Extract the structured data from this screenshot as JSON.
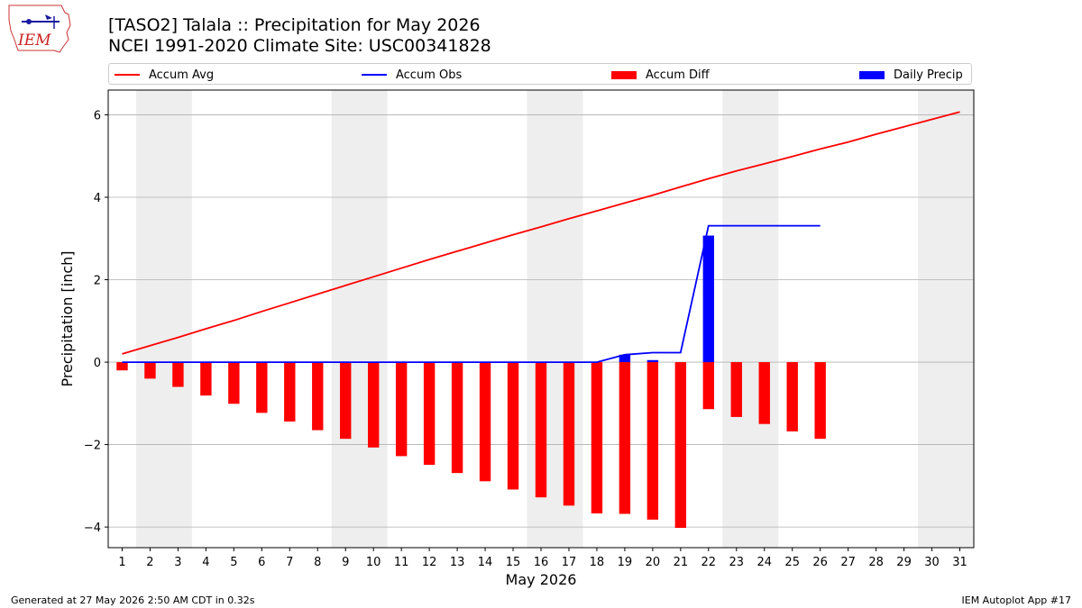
{
  "header": {
    "logo_text": "IEM",
    "title_line1": "[TASO2] Talala :: Precipitation for May 2026",
    "title_line2": "NCEI 1991-2020 Climate Site: USC00341828"
  },
  "legend": {
    "items": [
      {
        "label": "Accum Avg",
        "kind": "line",
        "color": "#ff0000"
      },
      {
        "label": "Accum Obs",
        "kind": "line",
        "color": "#0000ff"
      },
      {
        "label": "Accum Diff",
        "kind": "patch",
        "color": "#ff0000"
      },
      {
        "label": "Daily Precip",
        "kind": "patch",
        "color": "#0000ff"
      }
    ],
    "placement": "top, above plot"
  },
  "footer": {
    "left": "Generated at 27 May 2026 2:50 AM CDT in 0.32s",
    "right": "IEM Autoplot App #17"
  },
  "chart_data": {
    "type": "bar",
    "xlabel": "May 2026",
    "ylabel": "Precipitation [inch]",
    "xlim": [
      0.5,
      31.5
    ],
    "ylim": [
      -4.5,
      6.6
    ],
    "y_ticks": [
      -4,
      -2,
      0,
      2,
      4,
      6
    ],
    "y_tick_labels": [
      "−4",
      "−2",
      "0",
      "2",
      "4",
      "6"
    ],
    "x_ticks": [
      1,
      2,
      3,
      4,
      5,
      6,
      7,
      8,
      9,
      10,
      11,
      12,
      13,
      14,
      15,
      16,
      17,
      18,
      19,
      20,
      21,
      22,
      23,
      24,
      25,
      26,
      27,
      28,
      29,
      30,
      31
    ],
    "grid": "horizontal",
    "weekend_shading": [
      [
        2,
        3
      ],
      [
        9,
        10
      ],
      [
        16,
        17
      ],
      [
        23,
        24
      ],
      [
        30,
        31
      ]
    ],
    "colors": {
      "avg": "#ff0000",
      "obs": "#0000ff",
      "diff": "#ff0000",
      "daily": "#0000ff",
      "weekend": "#eeeeee",
      "grid": "#b0b0b0"
    },
    "series": [
      {
        "name": "Accum Avg",
        "kind": "line",
        "x": [
          1,
          2,
          3,
          4,
          5,
          6,
          7,
          8,
          9,
          10,
          11,
          12,
          13,
          14,
          15,
          16,
          17,
          18,
          19,
          20,
          21,
          22,
          23,
          24,
          25,
          26,
          27,
          28,
          29,
          30,
          31
        ],
        "values": [
          0.2,
          0.4,
          0.6,
          0.81,
          1.01,
          1.23,
          1.44,
          1.65,
          1.86,
          2.07,
          2.28,
          2.49,
          2.69,
          2.89,
          3.09,
          3.28,
          3.48,
          3.67,
          3.86,
          4.05,
          4.25,
          4.45,
          4.64,
          4.81,
          4.99,
          5.17,
          5.34,
          5.53,
          5.71,
          5.89,
          6.07
        ]
      },
      {
        "name": "Accum Obs",
        "kind": "line",
        "x": [
          1,
          2,
          3,
          4,
          5,
          6,
          7,
          8,
          9,
          10,
          11,
          12,
          13,
          14,
          15,
          16,
          17,
          18,
          19,
          20,
          21,
          22,
          23,
          24,
          25,
          26
        ],
        "values": [
          0,
          0,
          0,
          0,
          0,
          0,
          0,
          0,
          0,
          0,
          0,
          0,
          0,
          0,
          0,
          0,
          0,
          0,
          0.18,
          0.23,
          0.23,
          3.31,
          3.31,
          3.31,
          3.31,
          3.31
        ]
      },
      {
        "name": "Accum Diff",
        "kind": "bar",
        "x": [
          1,
          2,
          3,
          4,
          5,
          6,
          7,
          8,
          9,
          10,
          11,
          12,
          13,
          14,
          15,
          16,
          17,
          18,
          19,
          20,
          21,
          22,
          23,
          24,
          25,
          26
        ],
        "values": [
          -0.2,
          -0.4,
          -0.6,
          -0.81,
          -1.01,
          -1.23,
          -1.44,
          -1.65,
          -1.86,
          -2.07,
          -2.28,
          -2.49,
          -2.69,
          -2.89,
          -3.09,
          -3.28,
          -3.48,
          -3.67,
          -3.68,
          -3.82,
          -4.02,
          -1.14,
          -1.33,
          -1.5,
          -1.68,
          -1.86
        ]
      },
      {
        "name": "Daily Precip",
        "kind": "bar",
        "x": [
          19,
          20,
          22
        ],
        "values": [
          0.18,
          0.05,
          3.07
        ]
      }
    ]
  }
}
